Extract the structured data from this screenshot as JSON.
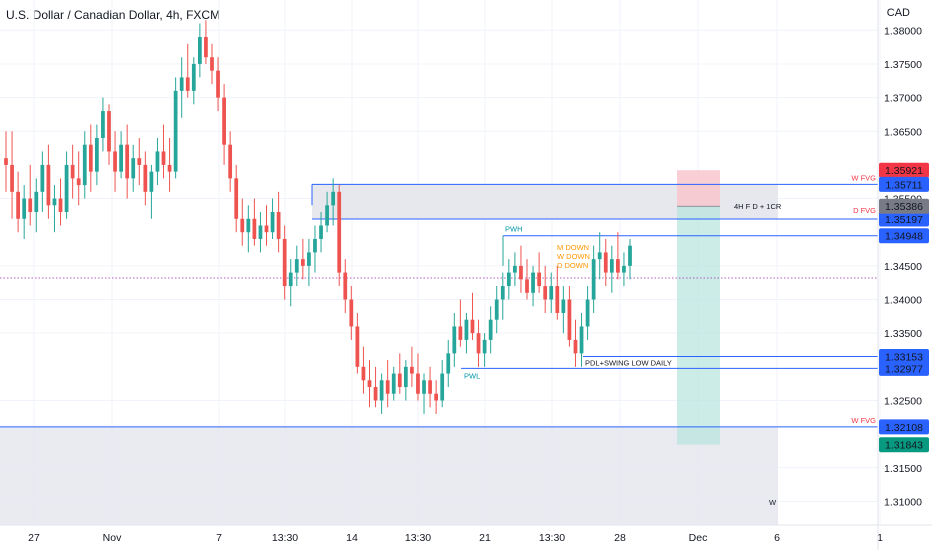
{
  "header": {
    "title": "U.S. Dollar / Canadian Dollar, 4h, FXCM",
    "currency": "CAD"
  },
  "colors": {
    "up": "#26a69a",
    "down": "#ef5350",
    "line_blue": "#2962ff",
    "grid": "#f0f3fa",
    "zone": "#e6e8ee",
    "current_price": "#9c27b0"
  },
  "chart_data": {
    "type": "candlestick",
    "title": "U.S. Dollar / Canadian Dollar, 4h, FXCM",
    "ylim": [
      1.3065,
      1.3845
    ],
    "y_ticks": [
      "1.38000",
      "1.37500",
      "1.37000",
      "1.36500",
      "1.35500",
      "1.34500",
      "1.34000",
      "1.33500",
      "1.32500",
      "1.31500",
      "1.31000"
    ],
    "x_ticks": [
      "27",
      "Nov",
      "7",
      "13:30",
      "14",
      "13:30",
      "21",
      "13:30",
      "28",
      "Dec",
      "6",
      "1"
    ],
    "current_price": 1.3432,
    "candles": [
      [
        1.361,
        1.365,
        1.356,
        1.36
      ],
      [
        1.36,
        1.365,
        1.352,
        1.356
      ],
      [
        1.356,
        1.359,
        1.35,
        1.352
      ],
      [
        1.352,
        1.357,
        1.349,
        1.355
      ],
      [
        1.355,
        1.36,
        1.351,
        1.353
      ],
      [
        1.353,
        1.358,
        1.35,
        1.356
      ],
      [
        1.356,
        1.362,
        1.353,
        1.36
      ],
      [
        1.36,
        1.363,
        1.352,
        1.354
      ],
      [
        1.354,
        1.357,
        1.35,
        1.355
      ],
      [
        1.355,
        1.358,
        1.351,
        1.353
      ],
      [
        1.353,
        1.362,
        1.352,
        1.36
      ],
      [
        1.36,
        1.363,
        1.355,
        1.358
      ],
      [
        1.358,
        1.362,
        1.354,
        1.357
      ],
      [
        1.357,
        1.365,
        1.355,
        1.363
      ],
      [
        1.363,
        1.366,
        1.356,
        1.359
      ],
      [
        1.359,
        1.366,
        1.357,
        1.364
      ],
      [
        1.364,
        1.37,
        1.362,
        1.368
      ],
      [
        1.368,
        1.369,
        1.36,
        1.362
      ],
      [
        1.362,
        1.365,
        1.356,
        1.359
      ],
      [
        1.359,
        1.365,
        1.358,
        1.363
      ],
      [
        1.363,
        1.366,
        1.355,
        1.358
      ],
      [
        1.358,
        1.363,
        1.356,
        1.361
      ],
      [
        1.361,
        1.364,
        1.357,
        1.36
      ],
      [
        1.36,
        1.362,
        1.354,
        1.356
      ],
      [
        1.356,
        1.36,
        1.352,
        1.359
      ],
      [
        1.359,
        1.364,
        1.357,
        1.362
      ],
      [
        1.362,
        1.366,
        1.358,
        1.36
      ],
      [
        1.36,
        1.364,
        1.356,
        1.359
      ],
      [
        1.359,
        1.373,
        1.358,
        1.371
      ],
      [
        1.371,
        1.376,
        1.367,
        1.373
      ],
      [
        1.373,
        1.378,
        1.37,
        1.371
      ],
      [
        1.371,
        1.376,
        1.369,
        1.375
      ],
      [
        1.375,
        1.381,
        1.373,
        1.379
      ],
      [
        1.379,
        1.3815,
        1.375,
        1.376
      ],
      [
        1.376,
        1.378,
        1.372,
        1.374
      ],
      [
        1.374,
        1.376,
        1.368,
        1.37
      ],
      [
        1.37,
        1.372,
        1.36,
        1.363
      ],
      [
        1.363,
        1.365,
        1.356,
        1.358
      ],
      [
        1.358,
        1.36,
        1.35,
        1.352
      ],
      [
        1.352,
        1.355,
        1.348,
        1.35
      ],
      [
        1.35,
        1.354,
        1.347,
        1.352
      ],
      [
        1.352,
        1.355,
        1.348,
        1.349
      ],
      [
        1.349,
        1.353,
        1.347,
        1.351
      ],
      [
        1.351,
        1.354,
        1.348,
        1.35
      ],
      [
        1.35,
        1.355,
        1.349,
        1.353
      ],
      [
        1.353,
        1.356,
        1.347,
        1.349
      ],
      [
        1.349,
        1.351,
        1.34,
        1.342
      ],
      [
        1.342,
        1.346,
        1.339,
        1.344
      ],
      [
        1.344,
        1.348,
        1.342,
        1.346
      ],
      [
        1.346,
        1.349,
        1.343,
        1.345
      ],
      [
        1.345,
        1.349,
        1.342,
        1.347
      ],
      [
        1.347,
        1.351,
        1.344,
        1.349
      ],
      [
        1.349,
        1.353,
        1.347,
        1.351
      ],
      [
        1.351,
        1.356,
        1.35,
        1.354
      ],
      [
        1.354,
        1.358,
        1.351,
        1.356
      ],
      [
        1.356,
        1.357,
        1.342,
        1.344
      ],
      [
        1.344,
        1.346,
        1.338,
        1.34
      ],
      [
        1.34,
        1.342,
        1.334,
        1.336
      ],
      [
        1.336,
        1.338,
        1.329,
        1.33
      ],
      [
        1.33,
        1.333,
        1.326,
        1.328
      ],
      [
        1.328,
        1.331,
        1.324,
        1.327
      ],
      [
        1.327,
        1.33,
        1.324,
        1.325
      ],
      [
        1.325,
        1.329,
        1.323,
        1.328
      ],
      [
        1.328,
        1.331,
        1.324,
        1.326
      ],
      [
        1.326,
        1.33,
        1.325,
        1.329
      ],
      [
        1.329,
        1.332,
        1.326,
        1.327
      ],
      [
        1.327,
        1.331,
        1.325,
        1.33
      ],
      [
        1.33,
        1.333,
        1.327,
        1.329
      ],
      [
        1.329,
        1.332,
        1.325,
        1.326
      ],
      [
        1.326,
        1.329,
        1.323,
        1.328
      ],
      [
        1.328,
        1.33,
        1.324,
        1.326
      ],
      [
        1.326,
        1.328,
        1.323,
        1.325
      ],
      [
        1.325,
        1.331,
        1.324,
        1.329
      ],
      [
        1.329,
        1.334,
        1.327,
        1.332
      ],
      [
        1.332,
        1.338,
        1.33,
        1.336
      ],
      [
        1.336,
        1.34,
        1.333,
        1.334
      ],
      [
        1.334,
        1.338,
        1.332,
        1.337
      ],
      [
        1.337,
        1.341,
        1.334,
        1.335
      ],
      [
        1.335,
        1.337,
        1.33,
        1.332
      ],
      [
        1.332,
        1.335,
        1.33,
        1.334
      ],
      [
        1.334,
        1.339,
        1.332,
        1.337
      ],
      [
        1.337,
        1.342,
        1.335,
        1.34
      ],
      [
        1.34,
        1.344,
        1.337,
        1.342
      ],
      [
        1.342,
        1.346,
        1.34,
        1.344
      ],
      [
        1.344,
        1.347,
        1.342,
        1.345
      ],
      [
        1.345,
        1.348,
        1.341,
        1.343
      ],
      [
        1.343,
        1.346,
        1.34,
        1.341
      ],
      [
        1.341,
        1.345,
        1.339,
        1.344
      ],
      [
        1.344,
        1.347,
        1.341,
        1.342
      ],
      [
        1.342,
        1.345,
        1.338,
        1.34
      ],
      [
        1.34,
        1.344,
        1.338,
        1.342
      ],
      [
        1.342,
        1.345,
        1.337,
        1.338
      ],
      [
        1.338,
        1.342,
        1.335,
        1.34
      ],
      [
        1.34,
        1.342,
        1.333,
        1.334
      ],
      [
        1.334,
        1.337,
        1.33,
        1.332
      ],
      [
        1.332,
        1.338,
        1.33,
        1.336
      ],
      [
        1.336,
        1.342,
        1.334,
        1.34
      ],
      [
        1.34,
        1.348,
        1.338,
        1.346
      ],
      [
        1.346,
        1.35,
        1.343,
        1.347
      ],
      [
        1.347,
        1.349,
        1.342,
        1.344
      ],
      [
        1.344,
        1.348,
        1.341,
        1.346
      ],
      [
        1.346,
        1.35,
        1.343,
        1.344
      ],
      [
        1.344,
        1.347,
        1.342,
        1.345
      ],
      [
        1.345,
        1.349,
        1.343,
        1.348
      ]
    ],
    "levels": [
      {
        "price": 1.35711,
        "label": "1.35711",
        "bg": "#2962ff"
      },
      {
        "price": 1.35197,
        "label": "1.35197",
        "bg": "#2962ff"
      },
      {
        "price": 1.34948,
        "label": "1.34948",
        "bg": "#2962ff"
      },
      {
        "price": 1.33153,
        "label": "1.33153",
        "bg": "#2962ff"
      },
      {
        "price": 1.32977,
        "label": "1.32977",
        "bg": "#2962ff"
      },
      {
        "price": 1.32108,
        "label": "1.32108",
        "bg": "#2962ff"
      }
    ],
    "position": {
      "entry": 1.35386,
      "stop": 1.35921,
      "target": 1.31843,
      "entry_label": "1.35386",
      "stop_label": "1.35921",
      "target_label": "1.31843",
      "note": "4H F D + 1CR"
    },
    "annotations": {
      "w_fvg_top": "W FVG",
      "d_fvg": "D FVG",
      "w_fvg_bottom": "W FVG",
      "pwh": "PWH",
      "pwl": "PWL",
      "m_down": "M DOWN",
      "w_down": "W DOWN",
      "d_down": "D DOWN",
      "pdl": "PDL+SWING LOW DAILY",
      "w": "W"
    }
  }
}
